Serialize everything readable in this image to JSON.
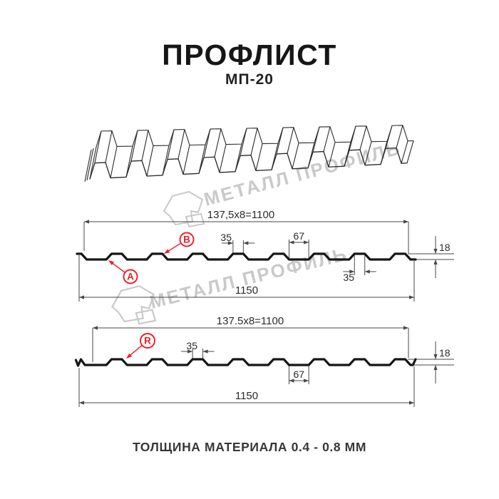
{
  "header": {
    "title": "ПРОФЛИСТ",
    "subtitle": "МП-20"
  },
  "footer": {
    "text": "ТОЛЩИНА МАТЕРИАЛА 0.4 - 0.8 ММ"
  },
  "watermark": {
    "text": "МЕТАЛЛ ПРОФИЛЬ"
  },
  "colors": {
    "line": "#161616",
    "dim": "#474747",
    "dim_text": "#2b2b2b",
    "accent_red": "#ed1c24",
    "watermark": "#c9c9c9",
    "sketch": "#2b2b2b"
  },
  "profile_spec": {
    "name": "МП-20",
    "total_width_mm": 1150,
    "working_width_mm": 1100,
    "pitch_mm": 137.5,
    "rib_count": 8,
    "rib_top_mm": 35,
    "valley_mm": 67,
    "rib_height_mm": 18,
    "thickness_range_mm": "0.4 - 0.8"
  },
  "profile_a": {
    "span_label": "137,5x8=1100",
    "rib_top_label": "35",
    "valley_label": "67",
    "height_label": "18",
    "rib_bottom_label": "35",
    "total_label": "1150",
    "callout_a": "A",
    "callout_b": "B"
  },
  "profile_r": {
    "span_label": "137.5x8=1100",
    "rib_top_label": "35",
    "valley_label": "67",
    "height_label": "18",
    "total_label": "1150",
    "callout_r": "R"
  }
}
